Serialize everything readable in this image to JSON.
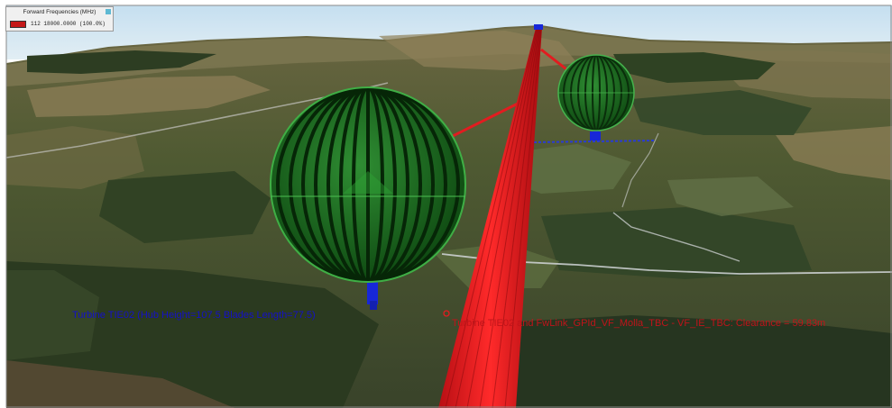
{
  "legend": {
    "title": "Forward Frequencies (MHz)",
    "entry": "112 18000.0000 (100.0%)",
    "swatch_color": "#c41818"
  },
  "labels": {
    "turbine": "Turbine TIE02 (Hub Height=107.5  Blades Length=77.5)",
    "clearance": "Turbine TIE02 and FwLink_GPId_VF_Molla_TBC - VF_IE_TBC: Clearance = 59.83m"
  },
  "colors": {
    "sky": "#d3e7f2",
    "terrain": "#5b5c36",
    "forest": "#2a3a1f",
    "link_beam": "#e0161b",
    "turbine_sphere": "#1f7a25",
    "turbine_tower": "#1727d8",
    "turbine_label": "#1410c8",
    "clearance_label": "#c0141a"
  },
  "icons": {
    "legend_close": "close-icon",
    "clearance_marker": "target-marker-icon"
  }
}
